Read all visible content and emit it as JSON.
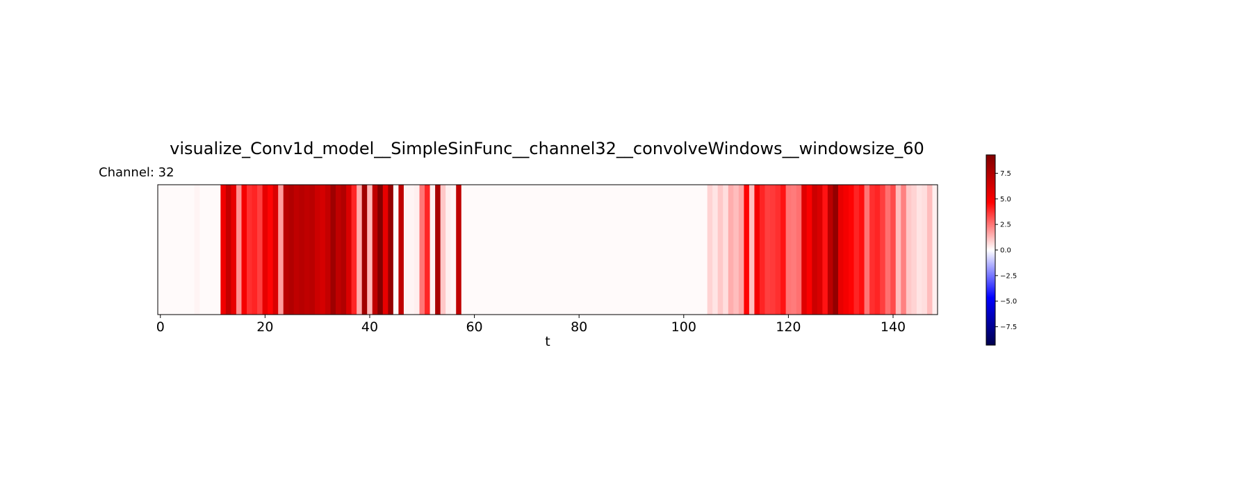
{
  "chart_data": {
    "type": "heatmap",
    "title": "visualize_Conv1d_model__SimpleSinFunc__channel32__convolveWindows__windowsize_60",
    "subtitle": "Channel: 32",
    "xlabel": "t",
    "ylabel": "",
    "xlim": [
      -0.5,
      148.5
    ],
    "xticks": [
      0,
      20,
      40,
      60,
      80,
      100,
      120,
      140
    ],
    "grid": false,
    "colormap": "seismic",
    "colorbar": {
      "vmin": -9.3,
      "vmax": 9.3,
      "ticks": [
        -7.5,
        -5.0,
        -2.5,
        0.0,
        2.5,
        5.0,
        7.5
      ],
      "tick_labels": [
        "−7.5",
        "−5.0",
        "−2.5",
        "0.0",
        "2.5",
        "5.0",
        "7.5"
      ]
    },
    "values": [
      0.1,
      0.1,
      0.1,
      0.1,
      0.1,
      0.1,
      0.1,
      0.2,
      0.1,
      0.1,
      0.1,
      0.1,
      5.2,
      6.8,
      5.5,
      2.0,
      5.0,
      3.8,
      4.0,
      3.5,
      5.5,
      4.6,
      6.0,
      1.8,
      7.2,
      7.5,
      7.0,
      7.3,
      7.0,
      7.2,
      6.5,
      6.2,
      6.8,
      8.2,
      7.0,
      7.5,
      6.0,
      4.0,
      1.5,
      8.1,
      1.3,
      7.0,
      9.2,
      5.5,
      8.5,
      0.1,
      7.0,
      0.2,
      0.2,
      0.3,
      2.5,
      4.0,
      0.3,
      7.8,
      1.0,
      0.3,
      0.2,
      7.0,
      0.1,
      0.1,
      0.1,
      0.1,
      0.1,
      0.1,
      0.1,
      0.1,
      0.1,
      0.1,
      0.1,
      0.1,
      0.1,
      0.1,
      0.1,
      0.1,
      0.1,
      0.1,
      0.1,
      0.1,
      0.1,
      0.1,
      0.1,
      0.1,
      0.1,
      0.1,
      0.1,
      0.1,
      0.1,
      0.1,
      0.1,
      0.1,
      0.1,
      0.1,
      0.1,
      0.1,
      0.1,
      0.1,
      0.1,
      0.1,
      0.1,
      0.1,
      0.1,
      0.1,
      0.1,
      0.1,
      0.1,
      0.8,
      0.5,
      1.0,
      0.6,
      1.5,
      1.2,
      1.6,
      4.6,
      1.2,
      5.0,
      4.0,
      3.5,
      3.6,
      3.8,
      4.3,
      2.5,
      2.4,
      2.6,
      5.8,
      4.8,
      6.5,
      6.0,
      4.3,
      7.2,
      8.6,
      5.5,
      5.0,
      4.6,
      4.0,
      4.4,
      2.5,
      3.8,
      4.0,
      3.5,
      2.6,
      3.3,
      1.2,
      2.3,
      1.0,
      0.8,
      0.5,
      0.6,
      1.2,
      0.3
    ]
  }
}
